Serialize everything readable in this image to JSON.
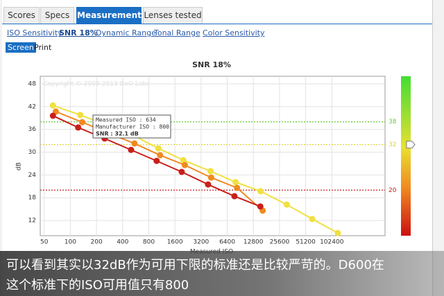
{
  "tabs": [
    "Scores",
    "Specs",
    "Measurements",
    "Lenses tested"
  ],
  "subtabs": [
    "ISO Sensitivity",
    "SNR 18%",
    "Dynamic Range",
    "Tonal Range",
    "Color Sensitivity"
  ],
  "buttons": [
    "Screen",
    "Print"
  ],
  "tooltip": {
    "lines": [
      "Measured ISO : 634",
      "Manufacturer ISO : 800",
      "SNR : 32.1 dB"
    ]
  },
  "caption": {
    "lines": [
      "可以看到其实以32dB作为可用下限的标准还是比较严苛的。D600在",
      "这个标准下的ISO可用值只有800"
    ]
  },
  "chart_data": {
    "type": "line",
    "title": "SNR 18%",
    "watermark": "Copyright © 2008-2013 DxO Labs",
    "x_label": "Measured ISO",
    "y_label": "dB",
    "log_x": true,
    "grid": true,
    "xlim": [
      45,
      420000
    ],
    "xticks": [
      50,
      100,
      200,
      400,
      800,
      1600,
      3200,
      6400,
      12800,
      25600,
      51200,
      102400
    ],
    "ylim": [
      8,
      50
    ],
    "yticks": [
      12,
      18,
      24,
      30,
      36,
      42,
      48
    ],
    "thresholds": [
      {
        "value": 38,
        "color": "#66cc33"
      },
      {
        "value": 32,
        "color": "#e0d030"
      },
      {
        "value": 20,
        "color": "#c82020"
      }
    ],
    "series": [
      {
        "color": "#f0e040",
        "x": [
          63,
          130,
          260,
          520,
          1030,
          2000,
          4100,
          8000,
          15500,
          31000,
          61000,
          120000
        ],
        "values": [
          42.3,
          39.8,
          37.2,
          34.5,
          31.0,
          27.9,
          25.0,
          22.1,
          19.7,
          16.2,
          12.4,
          8.7
        ]
      },
      {
        "color": "#f08a20",
        "x": [
          68,
          137,
          276,
          547,
          1080,
          2080,
          4180,
          8300,
          16400
        ],
        "values": [
          40.7,
          37.9,
          35.0,
          32.3,
          29.2,
          26.6,
          23.3,
          20.6,
          14.6
        ]
      },
      {
        "color": "#c8201a",
        "x": [
          63,
          123,
          248,
          500,
          985,
          1915,
          3850,
          7750,
          15400
        ],
        "values": [
          39.6,
          36.5,
          33.6,
          30.6,
          27.7,
          24.8,
          21.5,
          18.4,
          15.7
        ]
      }
    ]
  }
}
